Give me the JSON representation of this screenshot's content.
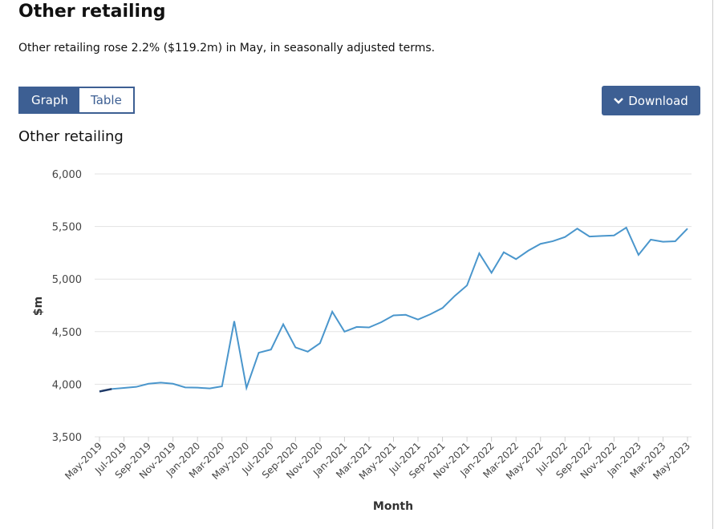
{
  "header": {
    "title": "Other retailing",
    "summary": "Other retailing rose 2.2% ($119.2m) in May, in seasonally adjusted terms."
  },
  "tabs": [
    {
      "label": "Graph",
      "active": true
    },
    {
      "label": "Table",
      "active": false
    }
  ],
  "download": {
    "label": "Download",
    "icon": "chevron-down-icon"
  },
  "colors": {
    "accent": "#3d5f93",
    "line": "#4a96cc",
    "first_segment": "#1f3a68"
  },
  "chart_data": {
    "type": "line",
    "title": "Other retailing",
    "xlabel": "Month",
    "ylabel": "$m",
    "ylim": [
      3500,
      6000
    ],
    "yticks": [
      "3,500",
      "4,000",
      "4,500",
      "5,000",
      "5,500",
      "6,000"
    ],
    "ytick_values": [
      3500,
      4000,
      4500,
      5000,
      5500,
      6000
    ],
    "xtick_labels": [
      "May-2019",
      "Jul-2019",
      "Sep-2019",
      "Nov-2019",
      "Jan-2020",
      "Mar-2020",
      "May-2020",
      "Jul-2020",
      "Sep-2020",
      "Nov-2020",
      "Jan-2021",
      "Mar-2021",
      "May-2021",
      "Jul-2021",
      "Sep-2021",
      "Nov-2021",
      "Jan-2022",
      "Mar-2022",
      "May-2022",
      "Jul-2022",
      "Sep-2022",
      "Nov-2022",
      "Jan-2023",
      "Mar-2023",
      "May-2023"
    ],
    "grid": true,
    "series": [
      {
        "name": "Other retailing",
        "x_start": "May-2019",
        "values": [
          3931,
          3955,
          3965,
          3975,
          4005,
          4015,
          4005,
          3970,
          3968,
          3960,
          3980,
          4600,
          3965,
          4300,
          4330,
          4570,
          4350,
          4310,
          4390,
          4690,
          4500,
          4545,
          4540,
          4590,
          4655,
          4660,
          4615,
          4665,
          4725,
          4840,
          4940,
          5245,
          5060,
          5255,
          5190,
          5270,
          5335,
          5360,
          5400,
          5480,
          5405,
          5410,
          5415,
          5490,
          5230,
          5375,
          5355,
          5360,
          5480
        ]
      }
    ]
  }
}
